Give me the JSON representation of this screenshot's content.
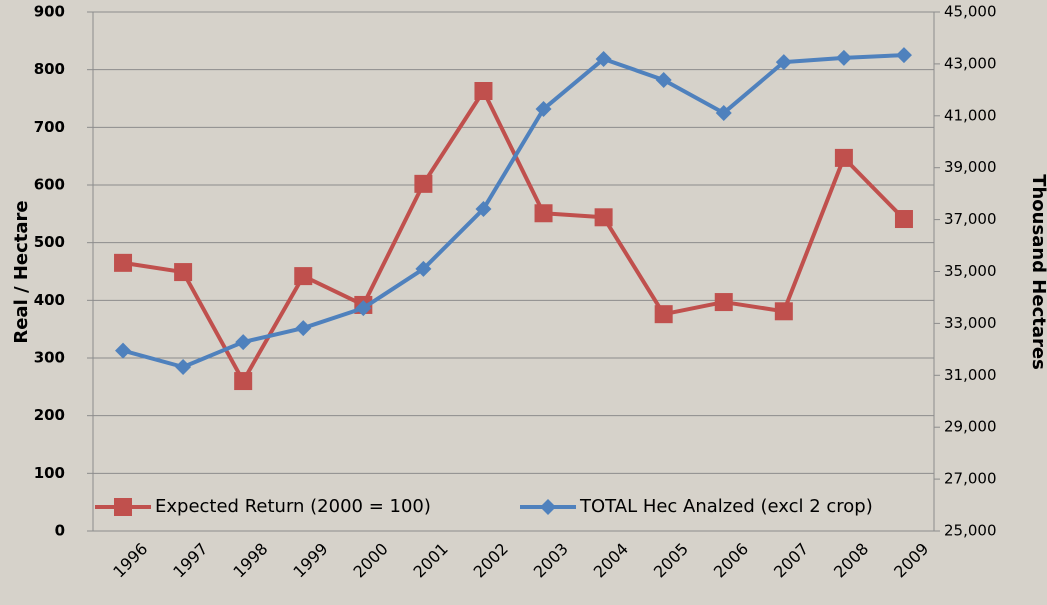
{
  "chart_data": {
    "type": "line",
    "categories": [
      "1996",
      "1997",
      "1998",
      "1999",
      "2000",
      "2001",
      "2002",
      "2003",
      "2004",
      "2005",
      "2006",
      "2007",
      "2008",
      "2009"
    ],
    "series": [
      {
        "name": "Expected Return (2000 = 100)",
        "color": "#c0504d",
        "marker": "square",
        "values": [
          465,
          449,
          260,
          442,
          392,
          602,
          763,
          551,
          544,
          376,
          397,
          381,
          647,
          541
        ]
      },
      {
        "name": "TOTAL Hec Analzed (excl 2 crop)",
        "color": "#4f81bd",
        "marker": "diamond",
        "axis": "y2",
        "values": [
          31950,
          31320,
          32280,
          32820,
          33590,
          35100,
          37410,
          41260,
          43190,
          42380,
          41110,
          43070,
          43230,
          43340
        ]
      }
    ],
    "ylabel": "Real / Hectare",
    "y2label": "Thousand Hectares",
    "ylim": [
      0,
      900
    ],
    "yticks": [
      0,
      100,
      200,
      300,
      400,
      500,
      600,
      700,
      800,
      900
    ],
    "y2lim": [
      25000,
      45000
    ],
    "y2ticks": [
      {
        "value": 25000,
        "label": "25,000"
      },
      {
        "value": 27000,
        "label": "27,000"
      },
      {
        "value": 29000,
        "label": "29,000"
      },
      {
        "value": 31000,
        "label": "31,000"
      },
      {
        "value": 33000,
        "label": "33,000"
      },
      {
        "value": 35000,
        "label": "35,000"
      },
      {
        "value": 37000,
        "label": "37,000"
      },
      {
        "value": 39000,
        "label": "39,000"
      },
      {
        "value": 41000,
        "label": "41,000"
      },
      {
        "value": 43000,
        "label": "43,000"
      },
      {
        "value": 45000,
        "label": "45,000"
      }
    ],
    "grid": true,
    "legend": "bottom"
  }
}
